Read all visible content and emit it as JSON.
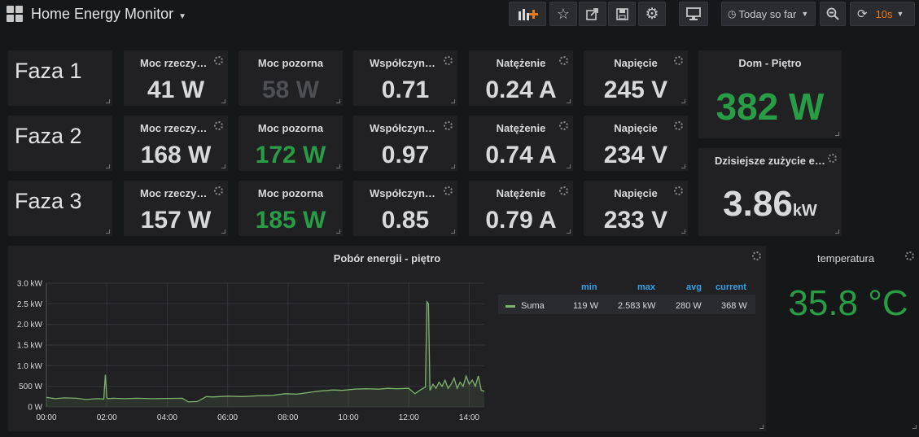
{
  "header": {
    "title": "Home Energy Monitor",
    "time_range": "Today so far",
    "refresh": "10s"
  },
  "colors": {
    "green": "#299c46",
    "blue": "#33a2e5",
    "series": "#7eb26d"
  },
  "phases": [
    {
      "label": "Faza 1",
      "real_title": "Moc rzeczywista",
      "real": "41 W",
      "apparent_title": "Moc pozorna",
      "apparent": "58 W",
      "pf_title": "Współczynnik mocy",
      "pf": "0.71",
      "current_title": "Natężenie",
      "current": "0.24 A",
      "voltage_title": "Napięcie",
      "voltage": "245 V"
    },
    {
      "label": "Faza 2",
      "real_title": "Moc rzeczywista",
      "real": "168 W",
      "apparent_title": "Moc pozorna",
      "apparent": "172 W",
      "pf_title": "Współczynnik mocy",
      "pf": "0.97",
      "current_title": "Natężenie",
      "current": "0.74 A",
      "voltage_title": "Napięcie",
      "voltage": "234 V"
    },
    {
      "label": "Faza 3",
      "real_title": "Moc rzeczywista",
      "real": "157 W",
      "apparent_title": "Moc pozorna",
      "apparent": "185 W",
      "pf_title": "Współczynnik mocy",
      "pf": "0.85",
      "current_title": "Natężenie",
      "current": "0.79 A",
      "voltage_title": "Napięcie",
      "voltage": "233 V"
    }
  ],
  "dom": {
    "title": "Dom - Piętro",
    "value": "382 W"
  },
  "usage": {
    "title": "Dzisiejsze zużycie energii",
    "value": "3.86",
    "unit": "kW"
  },
  "temperature": {
    "title": "temperatura",
    "value": "35.8 °C"
  },
  "graph": {
    "title": "Pobór energii - piętro",
    "legend": {
      "headers": [
        "min",
        "max",
        "avg",
        "current"
      ],
      "series_name": "Suma",
      "min": "119 W",
      "max": "2.583 kW",
      "avg": "280 W",
      "current": "368 W"
    }
  },
  "chart_data": {
    "type": "line",
    "title": "Pobór energii - piętro",
    "xlabel": "",
    "ylabel": "",
    "x_ticks": [
      "00:00",
      "02:00",
      "04:00",
      "06:00",
      "08:00",
      "10:00",
      "12:00",
      "14:00"
    ],
    "y_ticks": [
      "0 W",
      "500 W",
      "1.0 kW",
      "1.5 kW",
      "2.0 kW",
      "2.5 kW",
      "3.0 kW"
    ],
    "ylim": [
      0,
      3000
    ],
    "xlim_hours": [
      0,
      14.5
    ],
    "grid": true,
    "legend": "right",
    "series": [
      {
        "name": "Suma",
        "x_hours": [
          0,
          0.3,
          0.6,
          1.0,
          1.3,
          1.7,
          1.9,
          1.95,
          2.0,
          2.05,
          2.2,
          2.6,
          3.0,
          3.5,
          4.0,
          4.5,
          4.7,
          5.0,
          5.3,
          5.5,
          6.0,
          6.5,
          7.0,
          7.5,
          7.9,
          8.3,
          8.6,
          9.0,
          9.5,
          9.8,
          10.2,
          10.6,
          11.0,
          11.3,
          11.6,
          12.0,
          12.2,
          12.4,
          12.55,
          12.6,
          12.65,
          12.7,
          12.8,
          12.9,
          13.0,
          13.1,
          13.2,
          13.3,
          13.4,
          13.5,
          13.6,
          13.7,
          13.8,
          13.9,
          14.0,
          14.1,
          14.2,
          14.3,
          14.4,
          14.5
        ],
        "values": [
          230,
          200,
          220,
          210,
          180,
          200,
          190,
          780,
          220,
          200,
          210,
          200,
          210,
          200,
          205,
          210,
          120,
          130,
          250,
          240,
          260,
          250,
          270,
          280,
          320,
          310,
          340,
          380,
          410,
          400,
          430,
          440,
          430,
          450,
          440,
          450,
          320,
          420,
          480,
          2550,
          2500,
          400,
          550,
          450,
          600,
          500,
          650,
          450,
          550,
          700,
          450,
          600,
          500,
          750,
          550,
          650,
          500,
          750,
          400,
          380
        ]
      }
    ]
  }
}
